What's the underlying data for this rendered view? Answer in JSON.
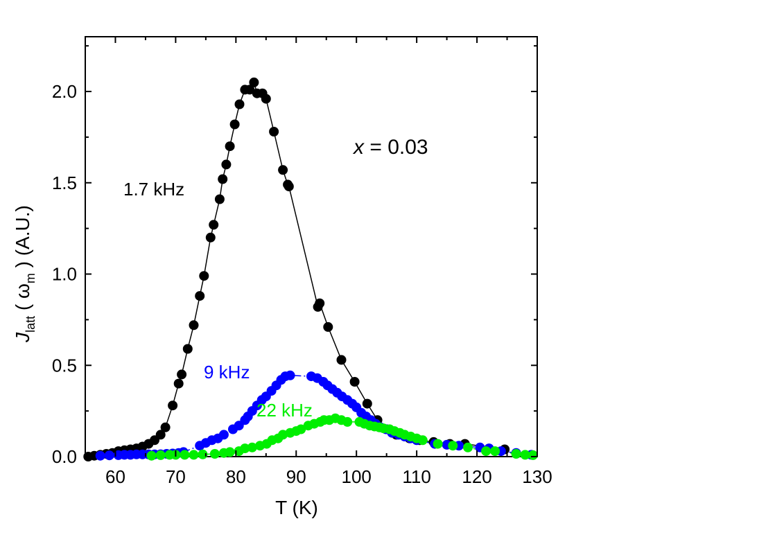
{
  "chart_data": {
    "type": "scatter",
    "title": "",
    "xlabel": "T (K)",
    "ylabel": {
      "symbol": "J",
      "subscript": "latt",
      "argument": "ω",
      "argument_subscript": "m",
      "units": "(A.U.)"
    },
    "xlim": [
      55,
      130
    ],
    "ylim": [
      0,
      2.3
    ],
    "x_ticks": [
      60,
      70,
      80,
      90,
      100,
      110,
      120,
      130
    ],
    "y_ticks": [
      0.0,
      0.5,
      1.0,
      1.5,
      2.0
    ],
    "x_tick_labels": [
      "60",
      "70",
      "80",
      "90",
      "100",
      "110",
      "120",
      "130"
    ],
    "y_tick_labels": [
      "0.0",
      "0.5",
      "1.0",
      "1.5",
      "2.0"
    ],
    "annotation": {
      "prefix": "x",
      "text": " = 0.03"
    },
    "series": [
      {
        "name": "1.7 kHz",
        "color": "#000000",
        "line": "solid",
        "points": [
          [
            55.5,
            0.0
          ],
          [
            56.5,
            0.005
          ],
          [
            57.5,
            0.01
          ],
          [
            58.5,
            0.015
          ],
          [
            59.5,
            0.02
          ],
          [
            60.5,
            0.03
          ],
          [
            61.5,
            0.035
          ],
          [
            62.5,
            0.04
          ],
          [
            63.5,
            0.045
          ],
          [
            64.5,
            0.055
          ],
          [
            65.5,
            0.07
          ],
          [
            66.5,
            0.09
          ],
          [
            67.5,
            0.12
          ],
          [
            68.3,
            0.16
          ],
          [
            69.5,
            0.28
          ],
          [
            70.5,
            0.4
          ],
          [
            71.0,
            0.45
          ],
          [
            72.0,
            0.59
          ],
          [
            73.0,
            0.72
          ],
          [
            74.0,
            0.88
          ],
          [
            74.7,
            0.99
          ],
          [
            75.8,
            1.2
          ],
          [
            76.3,
            1.27
          ],
          [
            77.3,
            1.41
          ],
          [
            77.8,
            1.52
          ],
          [
            78.4,
            1.6
          ],
          [
            79.0,
            1.7
          ],
          [
            79.8,
            1.82
          ],
          [
            80.6,
            1.93
          ],
          [
            81.5,
            2.01
          ],
          [
            82.3,
            2.01
          ],
          [
            83.0,
            2.05
          ],
          [
            83.5,
            1.99
          ],
          [
            84.4,
            1.99
          ],
          [
            85.0,
            1.96
          ],
          [
            86.3,
            1.78
          ],
          [
            87.8,
            1.57
          ],
          [
            88.6,
            1.49
          ],
          [
            88.8,
            1.48
          ],
          [
            93.6,
            0.82
          ],
          [
            93.9,
            0.84
          ],
          [
            95.3,
            0.71
          ],
          [
            97.5,
            0.53
          ],
          [
            99.7,
            0.41
          ],
          [
            101.8,
            0.29
          ],
          [
            103.5,
            0.2
          ],
          [
            105.0,
            0.15
          ],
          [
            106.6,
            0.12
          ],
          [
            108.8,
            0.1
          ],
          [
            110.5,
            0.09
          ],
          [
            112.8,
            0.08
          ],
          [
            115.5,
            0.07
          ],
          [
            118.0,
            0.07
          ],
          [
            124.6,
            0.04
          ]
        ]
      },
      {
        "name": "9 kHz",
        "color": "#0000ff",
        "line": "dashdot",
        "points": [
          [
            57.5,
            0.005
          ],
          [
            59.0,
            0.007
          ],
          [
            60.5,
            0.008
          ],
          [
            61.5,
            0.01
          ],
          [
            62.5,
            0.01
          ],
          [
            63.5,
            0.012
          ],
          [
            64.5,
            0.012
          ],
          [
            65.5,
            0.012
          ],
          [
            66.5,
            0.012
          ],
          [
            67.5,
            0.013
          ],
          [
            68.5,
            0.015
          ],
          [
            69.5,
            0.017
          ],
          [
            70.5,
            0.02
          ],
          [
            71.3,
            0.025
          ],
          [
            74.0,
            0.06
          ],
          [
            75.0,
            0.075
          ],
          [
            76.0,
            0.09
          ],
          [
            77.0,
            0.1
          ],
          [
            78.0,
            0.12
          ],
          [
            79.5,
            0.15
          ],
          [
            80.5,
            0.17
          ],
          [
            81.5,
            0.2
          ],
          [
            82.0,
            0.22
          ],
          [
            82.7,
            0.25
          ],
          [
            83.5,
            0.28
          ],
          [
            84.3,
            0.31
          ],
          [
            85.0,
            0.33
          ],
          [
            85.9,
            0.36
          ],
          [
            86.7,
            0.39
          ],
          [
            87.5,
            0.42
          ],
          [
            88.2,
            0.44
          ],
          [
            89.0,
            0.445
          ],
          [
            92.5,
            0.44
          ],
          [
            93.5,
            0.43
          ],
          [
            94.5,
            0.41
          ],
          [
            95.2,
            0.39
          ],
          [
            96.0,
            0.37
          ],
          [
            96.8,
            0.35
          ],
          [
            97.6,
            0.33
          ],
          [
            98.5,
            0.31
          ],
          [
            99.3,
            0.29
          ],
          [
            100.0,
            0.27
          ],
          [
            100.8,
            0.24
          ],
          [
            101.6,
            0.22
          ],
          [
            102.4,
            0.2
          ],
          [
            103.2,
            0.18
          ],
          [
            104.0,
            0.16
          ],
          [
            104.9,
            0.15
          ],
          [
            105.9,
            0.13
          ],
          [
            107.0,
            0.12
          ],
          [
            108.0,
            0.11
          ],
          [
            109.0,
            0.1
          ],
          [
            110.0,
            0.09
          ],
          [
            113.0,
            0.07
          ],
          [
            115.0,
            0.065
          ],
          [
            117.0,
            0.06
          ],
          [
            120.5,
            0.05
          ],
          [
            122.0,
            0.045
          ],
          [
            124.0,
            0.03
          ],
          [
            126.5,
            0.02
          ],
          [
            129.0,
            0.01
          ]
        ]
      },
      {
        "name": "22 kHz",
        "color": "#00ee00",
        "line": "dashdot",
        "points": [
          [
            66.0,
            0.005
          ],
          [
            67.5,
            0.008
          ],
          [
            69.0,
            0.01
          ],
          [
            70.0,
            0.01
          ],
          [
            71.5,
            0.01
          ],
          [
            73.0,
            0.01
          ],
          [
            74.5,
            0.012
          ],
          [
            76.5,
            0.015
          ],
          [
            78.0,
            0.02
          ],
          [
            79.0,
            0.025
          ],
          [
            80.5,
            0.03
          ],
          [
            81.5,
            0.045
          ],
          [
            82.7,
            0.05
          ],
          [
            84.0,
            0.06
          ],
          [
            85.1,
            0.07
          ],
          [
            86.0,
            0.09
          ],
          [
            87.0,
            0.1
          ],
          [
            87.8,
            0.12
          ],
          [
            89.0,
            0.13
          ],
          [
            90.0,
            0.14
          ],
          [
            90.8,
            0.15
          ],
          [
            92.0,
            0.17
          ],
          [
            93.0,
            0.18
          ],
          [
            94.0,
            0.19
          ],
          [
            94.6,
            0.2
          ],
          [
            95.5,
            0.2
          ],
          [
            96.5,
            0.21
          ],
          [
            97.5,
            0.2
          ],
          [
            98.5,
            0.19
          ],
          [
            100.5,
            0.19
          ],
          [
            101.3,
            0.18
          ],
          [
            102.2,
            0.17
          ],
          [
            103.0,
            0.165
          ],
          [
            103.8,
            0.16
          ],
          [
            104.5,
            0.155
          ],
          [
            105.5,
            0.15
          ],
          [
            106.3,
            0.14
          ],
          [
            107.2,
            0.13
          ],
          [
            108.0,
            0.12
          ],
          [
            109.0,
            0.11
          ],
          [
            110.0,
            0.1
          ],
          [
            111.0,
            0.09
          ],
          [
            113.5,
            0.07
          ],
          [
            116.0,
            0.06
          ],
          [
            118.5,
            0.05
          ],
          [
            121.5,
            0.03
          ],
          [
            123.0,
            0.03
          ],
          [
            126.5,
            0.015
          ],
          [
            128.0,
            0.01
          ],
          [
            129.3,
            0.008
          ]
        ]
      }
    ]
  }
}
